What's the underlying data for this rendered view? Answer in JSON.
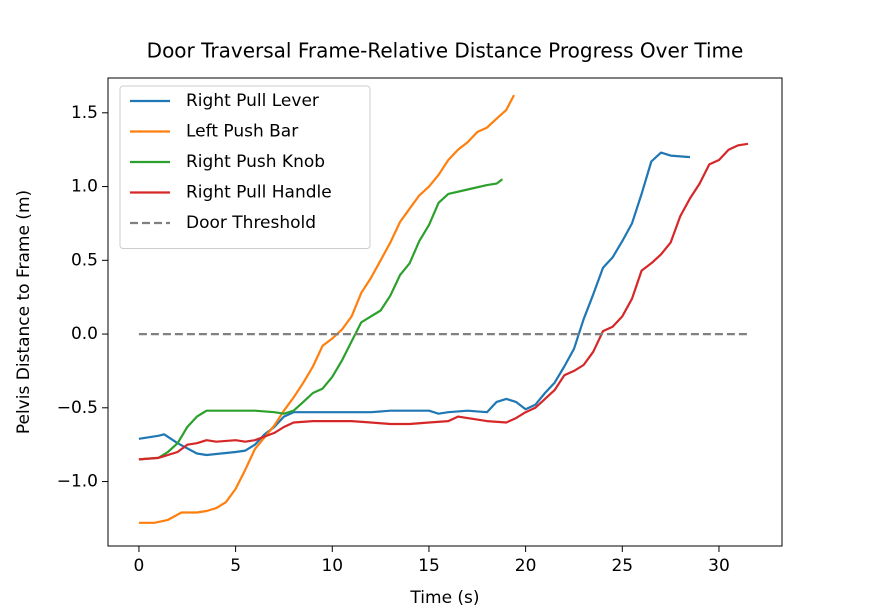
{
  "chart_data": {
    "type": "line",
    "title": "Door Traversal Frame-Relative Distance Progress Over Time",
    "x_label": "Time (s)",
    "y_label": "Pelvis Distance to Frame (m)",
    "xlim": [
      -1.6,
      33.26
    ],
    "ylim": [
      -1.437,
      1.736
    ],
    "xticks": [
      0,
      5,
      10,
      15,
      20,
      25,
      30
    ],
    "yticks": [
      {
        "value": -1,
        "label": "−1.0"
      },
      {
        "value": -0.5,
        "label": "−0.5"
      },
      {
        "value": 0,
        "label": "0.0"
      },
      0.5,
      {
        "value": 1,
        "label": "1.0"
      },
      1.5
    ],
    "grid": false,
    "legend": "upper left",
    "series": [
      {
        "name": "Right Pull Lever",
        "color": "#1f77b4",
        "dashed": false,
        "x": [
          0,
          0.5,
          1,
          1.3,
          2,
          3,
          3.5,
          5,
          5.5,
          6,
          6.5,
          7,
          7.5,
          8,
          10,
          12,
          13,
          15,
          15.5,
          16,
          17,
          18,
          18.5,
          19,
          19.5,
          20,
          20.5,
          21,
          21.5,
          22,
          22.5,
          23,
          23.5,
          24,
          24.5,
          25,
          25.5,
          26,
          26.5,
          27,
          27.5,
          28.5
        ],
        "values": [
          -0.71,
          -0.7,
          -0.69,
          -0.68,
          -0.74,
          -0.81,
          -0.82,
          -0.8,
          -0.79,
          -0.75,
          -0.68,
          -0.63,
          -0.56,
          -0.53,
          -0.53,
          -0.53,
          -0.52,
          -0.52,
          -0.54,
          -0.53,
          -0.52,
          -0.53,
          -0.46,
          -0.44,
          -0.46,
          -0.51,
          -0.48,
          -0.4,
          -0.33,
          -0.22,
          -0.1,
          0.1,
          0.27,
          0.45,
          0.52,
          0.63,
          0.75,
          0.95,
          1.17,
          1.23,
          1.21,
          1.2
        ]
      },
      {
        "name": "Left Push Bar",
        "color": "#ff7f0e",
        "dashed": false,
        "x": [
          0,
          0.8,
          1.5,
          2.2,
          3,
          3.5,
          4,
          4.5,
          5,
          5.5,
          6,
          6.5,
          7,
          7.5,
          8,
          8.5,
          9,
          9.5,
          10,
          10.5,
          11,
          11.5,
          12,
          12.5,
          13,
          13.5,
          14,
          14.5,
          15,
          15.5,
          16,
          16.5,
          17,
          17.5,
          18,
          18.5,
          19,
          19.4
        ],
        "values": [
          -1.28,
          -1.28,
          -1.26,
          -1.21,
          -1.21,
          -1.2,
          -1.18,
          -1.14,
          -1.05,
          -0.92,
          -0.78,
          -0.7,
          -0.62,
          -0.52,
          -0.43,
          -0.33,
          -0.22,
          -0.08,
          -0.03,
          0.03,
          0.12,
          0.28,
          0.38,
          0.5,
          0.62,
          0.76,
          0.85,
          0.94,
          1.0,
          1.08,
          1.18,
          1.25,
          1.3,
          1.37,
          1.4,
          1.46,
          1.52,
          1.62
        ]
      },
      {
        "name": "Right Push Knob",
        "color": "#2ca02c",
        "dashed": false,
        "x": [
          0,
          1,
          1.5,
          2,
          2.5,
          3,
          3.5,
          5,
          6,
          7,
          7.5,
          8,
          8.5,
          9,
          9.5,
          10,
          10.5,
          11,
          11.5,
          12,
          12.5,
          13,
          13.5,
          14,
          14.5,
          15,
          15.5,
          16,
          17,
          18,
          18.5,
          18.8
        ],
        "values": [
          -0.85,
          -0.84,
          -0.8,
          -0.74,
          -0.63,
          -0.56,
          -0.52,
          -0.52,
          -0.52,
          -0.53,
          -0.54,
          -0.52,
          -0.46,
          -0.4,
          -0.37,
          -0.29,
          -0.18,
          -0.05,
          0.08,
          0.12,
          0.16,
          0.26,
          0.4,
          0.48,
          0.63,
          0.74,
          0.89,
          0.95,
          0.98,
          1.01,
          1.02,
          1.05
        ]
      },
      {
        "name": "Right Pull Handle",
        "color": "#d62728",
        "dashed": false,
        "x": [
          0,
          1,
          1.5,
          2,
          2.5,
          3,
          3.5,
          4,
          5,
          5.5,
          6,
          7,
          7.5,
          8,
          9,
          11,
          12,
          13,
          14,
          15,
          16,
          16.5,
          17,
          18,
          19,
          19.5,
          20,
          20.5,
          21,
          21.5,
          22,
          22.5,
          23,
          23.5,
          24,
          24.5,
          25,
          25.5,
          26,
          26.5,
          27,
          27.5,
          28,
          28.5,
          29,
          29.5,
          30,
          30.5,
          31,
          31.5
        ],
        "values": [
          -0.85,
          -0.84,
          -0.82,
          -0.8,
          -0.75,
          -0.74,
          -0.72,
          -0.73,
          -0.72,
          -0.73,
          -0.72,
          -0.67,
          -0.63,
          -0.6,
          -0.59,
          -0.59,
          -0.6,
          -0.61,
          -0.61,
          -0.6,
          -0.59,
          -0.56,
          -0.57,
          -0.59,
          -0.6,
          -0.57,
          -0.53,
          -0.5,
          -0.44,
          -0.38,
          -0.28,
          -0.25,
          -0.21,
          -0.12,
          0.02,
          0.05,
          0.12,
          0.24,
          0.43,
          0.48,
          0.54,
          0.62,
          0.8,
          0.92,
          1.02,
          1.15,
          1.18,
          1.25,
          1.28,
          1.29
        ]
      },
      {
        "name": "Door Threshold",
        "color": "#808080",
        "dashed": true,
        "x": [
          0,
          31.5
        ],
        "values": [
          0,
          0
        ]
      }
    ]
  }
}
